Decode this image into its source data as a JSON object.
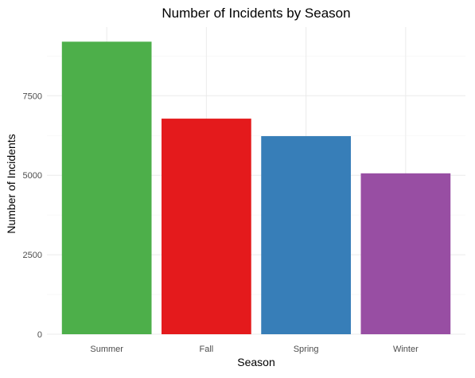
{
  "chart_data": {
    "type": "bar",
    "title": "Number of Incidents by Season",
    "xlabel": "Season",
    "ylabel": "Number of Incidents",
    "categories": [
      "Summer",
      "Fall",
      "Spring",
      "Winter"
    ],
    "values": [
      9200,
      6780,
      6230,
      5060
    ],
    "colors": [
      "#4DAF4A",
      "#E41A1C",
      "#377EB8",
      "#984EA3"
    ],
    "ylim": [
      0,
      9660
    ],
    "yticks": [
      0,
      2500,
      5000,
      7500
    ],
    "grid": true,
    "legend": "none"
  }
}
